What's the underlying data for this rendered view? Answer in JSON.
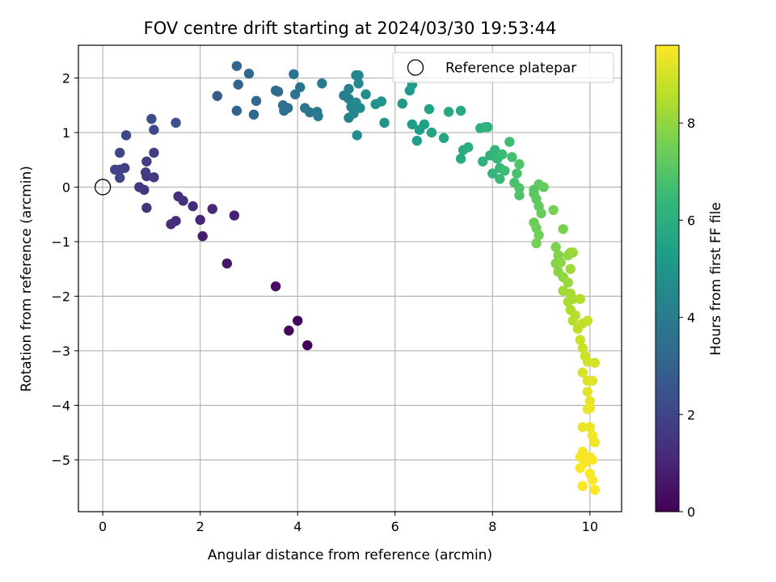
{
  "chart_data": {
    "type": "scatter",
    "title": "FOV centre drift starting at 2024/03/30 19:53:44",
    "xlabel": "Angular distance from reference (arcmin)",
    "ylabel": "Rotation from reference (arcmin)",
    "xlim": [
      -0.5,
      10.65
    ],
    "ylim": [
      -5.95,
      2.6
    ],
    "xticks": [
      0,
      2,
      4,
      6,
      8,
      10
    ],
    "yticks": [
      -5,
      -4,
      -3,
      -2,
      -1,
      0,
      1,
      2
    ],
    "grid": true,
    "legend_position": "upper-right",
    "legend_entries": [
      "Reference platepar"
    ],
    "reference_point": {
      "x": 0,
      "y": 0
    },
    "colorbar": {
      "label": "Hours from first FF file",
      "colormap": "viridis",
      "range": [
        0,
        9.6
      ],
      "ticks": [
        0,
        2,
        4,
        6,
        8
      ]
    },
    "colormap_stops": [
      "#440154",
      "#482878",
      "#3e4989",
      "#31688e",
      "#26828e",
      "#1f9e89",
      "#35b779",
      "#6ece58",
      "#b5de2b",
      "#fde725"
    ],
    "series": [
      {
        "points": [
          {
            "x": 4.2,
            "y": -2.9,
            "t": 0.05
          },
          {
            "x": 4.0,
            "y": -2.45,
            "t": 0.15
          },
          {
            "x": 3.82,
            "y": -2.63,
            "t": 0.25
          },
          {
            "x": 3.55,
            "y": -1.82,
            "t": 0.35
          },
          {
            "x": 2.55,
            "y": -1.4,
            "t": 0.6
          },
          {
            "x": 2.05,
            "y": -0.9,
            "t": 0.75
          },
          {
            "x": 2.7,
            "y": -0.52,
            "t": 0.85
          },
          {
            "x": 2.0,
            "y": -0.6,
            "t": 0.95
          },
          {
            "x": 2.25,
            "y": -0.4,
            "t": 1.05
          },
          {
            "x": 1.85,
            "y": -0.35,
            "t": 1.15
          },
          {
            "x": 1.5,
            "y": -0.62,
            "t": 1.2
          },
          {
            "x": 1.4,
            "y": -0.68,
            "t": 1.25
          },
          {
            "x": 1.65,
            "y": -0.25,
            "t": 1.3
          },
          {
            "x": 1.55,
            "y": -0.17,
            "t": 1.35
          },
          {
            "x": 0.9,
            "y": -0.38,
            "t": 1.45
          },
          {
            "x": 0.85,
            "y": -0.05,
            "t": 1.5
          },
          {
            "x": 0.75,
            "y": 0.0,
            "t": 1.55
          },
          {
            "x": 0.9,
            "y": 0.2,
            "t": 1.6
          },
          {
            "x": 1.05,
            "y": 0.18,
            "t": 1.65
          },
          {
            "x": 0.88,
            "y": 0.27,
            "t": 1.7
          },
          {
            "x": 0.9,
            "y": 0.47,
            "t": 1.75
          },
          {
            "x": 1.05,
            "y": 0.63,
            "t": 1.8
          },
          {
            "x": 0.45,
            "y": 0.35,
            "t": 1.85
          },
          {
            "x": 0.35,
            "y": 0.32,
            "t": 1.9
          },
          {
            "x": 0.25,
            "y": 0.32,
            "t": 1.95
          },
          {
            "x": 0.35,
            "y": 0.17,
            "t": 2.0
          },
          {
            "x": 0.35,
            "y": 0.63,
            "t": 2.05
          },
          {
            "x": 0.48,
            "y": 0.95,
            "t": 2.1
          },
          {
            "x": 1.05,
            "y": 1.05,
            "t": 2.2
          },
          {
            "x": 1.0,
            "y": 1.25,
            "t": 2.3
          },
          {
            "x": 1.5,
            "y": 1.18,
            "t": 2.4
          },
          {
            "x": 2.35,
            "y": 1.67,
            "t": 2.8
          },
          {
            "x": 2.75,
            "y": 1.4,
            "t": 3.0
          },
          {
            "x": 2.78,
            "y": 1.88,
            "t": 3.05
          },
          {
            "x": 2.75,
            "y": 2.22,
            "t": 3.1
          },
          {
            "x": 3.0,
            "y": 2.08,
            "t": 3.15
          },
          {
            "x": 3.15,
            "y": 1.58,
            "t": 3.2
          },
          {
            "x": 3.1,
            "y": 1.33,
            "t": 3.25
          },
          {
            "x": 3.55,
            "y": 1.77,
            "t": 3.35
          },
          {
            "x": 3.6,
            "y": 1.75,
            "t": 3.4
          },
          {
            "x": 3.7,
            "y": 1.5,
            "t": 3.45
          },
          {
            "x": 3.8,
            "y": 1.45,
            "t": 3.5
          },
          {
            "x": 3.72,
            "y": 1.4,
            "t": 3.55
          },
          {
            "x": 3.95,
            "y": 1.7,
            "t": 3.6
          },
          {
            "x": 3.92,
            "y": 2.07,
            "t": 3.65
          },
          {
            "x": 4.05,
            "y": 1.83,
            "t": 3.7
          },
          {
            "x": 4.15,
            "y": 1.45,
            "t": 3.75
          },
          {
            "x": 4.25,
            "y": 1.37,
            "t": 3.8
          },
          {
            "x": 4.4,
            "y": 1.38,
            "t": 3.85
          },
          {
            "x": 4.42,
            "y": 1.3,
            "t": 3.9
          },
          {
            "x": 4.5,
            "y": 1.9,
            "t": 3.95
          },
          {
            "x": 4.95,
            "y": 1.68,
            "t": 4.1
          },
          {
            "x": 5.05,
            "y": 1.62,
            "t": 4.15
          },
          {
            "x": 5.05,
            "y": 1.8,
            "t": 4.2
          },
          {
            "x": 5.1,
            "y": 1.47,
            "t": 4.25
          },
          {
            "x": 5.05,
            "y": 1.27,
            "t": 4.3
          },
          {
            "x": 5.15,
            "y": 1.35,
            "t": 4.35
          },
          {
            "x": 5.2,
            "y": 2.05,
            "t": 4.4
          },
          {
            "x": 5.25,
            "y": 2.05,
            "t": 4.45
          },
          {
            "x": 5.25,
            "y": 1.9,
            "t": 4.5
          },
          {
            "x": 5.28,
            "y": 1.45,
            "t": 4.55
          },
          {
            "x": 5.2,
            "y": 1.55,
            "t": 4.6
          },
          {
            "x": 5.4,
            "y": 1.7,
            "t": 4.7
          },
          {
            "x": 5.22,
            "y": 0.95,
            "t": 4.75
          },
          {
            "x": 5.6,
            "y": 1.52,
            "t": 4.85
          },
          {
            "x": 5.72,
            "y": 1.57,
            "t": 4.9
          },
          {
            "x": 5.78,
            "y": 1.18,
            "t": 4.95
          },
          {
            "x": 6.15,
            "y": 1.53,
            "t": 5.1
          },
          {
            "x": 6.3,
            "y": 1.77,
            "t": 5.2
          },
          {
            "x": 6.35,
            "y": 1.88,
            "t": 5.25
          },
          {
            "x": 6.35,
            "y": 1.15,
            "t": 5.3
          },
          {
            "x": 6.5,
            "y": 1.05,
            "t": 5.35
          },
          {
            "x": 6.45,
            "y": 0.85,
            "t": 5.4
          },
          {
            "x": 6.6,
            "y": 1.15,
            "t": 5.45
          },
          {
            "x": 6.7,
            "y": 1.43,
            "t": 5.5
          },
          {
            "x": 6.75,
            "y": 1.0,
            "t": 5.55
          },
          {
            "x": 7.0,
            "y": 0.9,
            "t": 5.65
          },
          {
            "x": 7.1,
            "y": 1.38,
            "t": 5.7
          },
          {
            "x": 7.35,
            "y": 1.4,
            "t": 5.8
          },
          {
            "x": 7.35,
            "y": 0.52,
            "t": 5.85
          },
          {
            "x": 7.4,
            "y": 0.68,
            "t": 5.9
          },
          {
            "x": 7.5,
            "y": 0.73,
            "t": 5.95
          },
          {
            "x": 7.75,
            "y": 1.08,
            "t": 6.05
          },
          {
            "x": 7.85,
            "y": 1.1,
            "t": 6.1
          },
          {
            "x": 7.9,
            "y": 1.1,
            "t": 6.15
          },
          {
            "x": 7.8,
            "y": 0.47,
            "t": 6.2
          },
          {
            "x": 7.95,
            "y": 0.58,
            "t": 6.25
          },
          {
            "x": 8.0,
            "y": 0.25,
            "t": 6.3
          },
          {
            "x": 8.05,
            "y": 0.68,
            "t": 6.35
          },
          {
            "x": 8.1,
            "y": 0.52,
            "t": 6.4
          },
          {
            "x": 8.15,
            "y": 0.35,
            "t": 6.45
          },
          {
            "x": 8.15,
            "y": 0.15,
            "t": 6.5
          },
          {
            "x": 8.2,
            "y": 0.6,
            "t": 6.55
          },
          {
            "x": 8.25,
            "y": 0.3,
            "t": 6.6
          },
          {
            "x": 8.35,
            "y": 0.83,
            "t": 6.65
          },
          {
            "x": 8.4,
            "y": 0.55,
            "t": 6.7
          },
          {
            "x": 8.45,
            "y": 0.08,
            "t": 6.75
          },
          {
            "x": 8.5,
            "y": 0.25,
            "t": 6.8
          },
          {
            "x": 8.55,
            "y": -0.15,
            "t": 6.85
          },
          {
            "x": 8.55,
            "y": -0.02,
            "t": 6.9
          },
          {
            "x": 8.55,
            "y": 0.42,
            "t": 6.95
          },
          {
            "x": 8.85,
            "y": -0.05,
            "t": 7.05
          },
          {
            "x": 8.85,
            "y": -0.12,
            "t": 7.1
          },
          {
            "x": 8.9,
            "y": -0.22,
            "t": 7.15
          },
          {
            "x": 8.95,
            "y": 0.05,
            "t": 7.2
          },
          {
            "x": 8.95,
            "y": -0.35,
            "t": 7.25
          },
          {
            "x": 9.05,
            "y": 0.0,
            "t": 7.3
          },
          {
            "x": 9.0,
            "y": -0.48,
            "t": 7.35
          },
          {
            "x": 8.85,
            "y": -0.65,
            "t": 7.4
          },
          {
            "x": 8.9,
            "y": -0.75,
            "t": 7.45
          },
          {
            "x": 8.95,
            "y": -0.88,
            "t": 7.5
          },
          {
            "x": 8.9,
            "y": -1.03,
            "t": 7.55
          },
          {
            "x": 9.25,
            "y": -0.42,
            "t": 7.6
          },
          {
            "x": 9.45,
            "y": -0.77,
            "t": 7.65
          },
          {
            "x": 9.3,
            "y": -1.1,
            "t": 7.7
          },
          {
            "x": 9.35,
            "y": -1.25,
            "t": 7.75
          },
          {
            "x": 9.3,
            "y": -1.4,
            "t": 7.8
          },
          {
            "x": 9.35,
            "y": -1.55,
            "t": 7.85
          },
          {
            "x": 9.4,
            "y": -1.38,
            "t": 7.9
          },
          {
            "x": 9.45,
            "y": -1.65,
            "t": 7.95
          },
          {
            "x": 9.55,
            "y": -1.25,
            "t": 8.0
          },
          {
            "x": 9.6,
            "y": -1.2,
            "t": 8.05
          },
          {
            "x": 9.65,
            "y": -1.2,
            "t": 8.1
          },
          {
            "x": 9.55,
            "y": -1.75,
            "t": 8.15
          },
          {
            "x": 9.6,
            "y": -1.5,
            "t": 8.2
          },
          {
            "x": 9.45,
            "y": -1.9,
            "t": 8.25
          },
          {
            "x": 9.6,
            "y": -1.95,
            "t": 8.3
          },
          {
            "x": 9.65,
            "y": -2.05,
            "t": 8.35
          },
          {
            "x": 9.55,
            "y": -2.1,
            "t": 8.4
          },
          {
            "x": 9.6,
            "y": -2.25,
            "t": 8.45
          },
          {
            "x": 9.8,
            "y": -2.05,
            "t": 8.5
          },
          {
            "x": 9.7,
            "y": -2.35,
            "t": 8.55
          },
          {
            "x": 9.65,
            "y": -2.45,
            "t": 8.6
          },
          {
            "x": 9.75,
            "y": -2.6,
            "t": 8.65
          },
          {
            "x": 9.85,
            "y": -2.5,
            "t": 8.7
          },
          {
            "x": 9.95,
            "y": -2.45,
            "t": 8.75
          },
          {
            "x": 9.8,
            "y": -2.8,
            "t": 8.8
          },
          {
            "x": 9.85,
            "y": -2.95,
            "t": 8.85
          },
          {
            "x": 9.9,
            "y": -3.1,
            "t": 8.9
          },
          {
            "x": 9.95,
            "y": -3.2,
            "t": 8.95
          },
          {
            "x": 10.1,
            "y": -3.22,
            "t": 9.0
          },
          {
            "x": 9.85,
            "y": -3.4,
            "t": 9.05
          },
          {
            "x": 9.95,
            "y": -3.55,
            "t": 9.1
          },
          {
            "x": 10.05,
            "y": -3.55,
            "t": 9.15
          },
          {
            "x": 9.95,
            "y": -3.75,
            "t": 9.2
          },
          {
            "x": 10.0,
            "y": -3.92,
            "t": 9.25
          },
          {
            "x": 9.95,
            "y": -4.07,
            "t": 9.3
          },
          {
            "x": 10.0,
            "y": -4.05,
            "t": 9.32
          },
          {
            "x": 9.85,
            "y": -4.4,
            "t": 9.35
          },
          {
            "x": 10.0,
            "y": -4.4,
            "t": 9.38
          },
          {
            "x": 10.05,
            "y": -4.55,
            "t": 9.4
          },
          {
            "x": 10.1,
            "y": -4.68,
            "t": 9.42
          },
          {
            "x": 9.85,
            "y": -4.85,
            "t": 9.45
          },
          {
            "x": 9.8,
            "y": -4.95,
            "t": 9.47
          },
          {
            "x": 9.9,
            "y": -5.05,
            "t": 9.49
          },
          {
            "x": 10.0,
            "y": -4.95,
            "t": 9.5
          },
          {
            "x": 10.05,
            "y": -5.0,
            "t": 9.52
          },
          {
            "x": 9.8,
            "y": -5.15,
            "t": 9.54
          },
          {
            "x": 10.0,
            "y": -5.25,
            "t": 9.56
          },
          {
            "x": 10.05,
            "y": -5.37,
            "t": 9.58
          },
          {
            "x": 9.85,
            "y": -5.48,
            "t": 9.6
          },
          {
            "x": 10.1,
            "y": -5.55,
            "t": 9.6
          }
        ]
      }
    ]
  }
}
